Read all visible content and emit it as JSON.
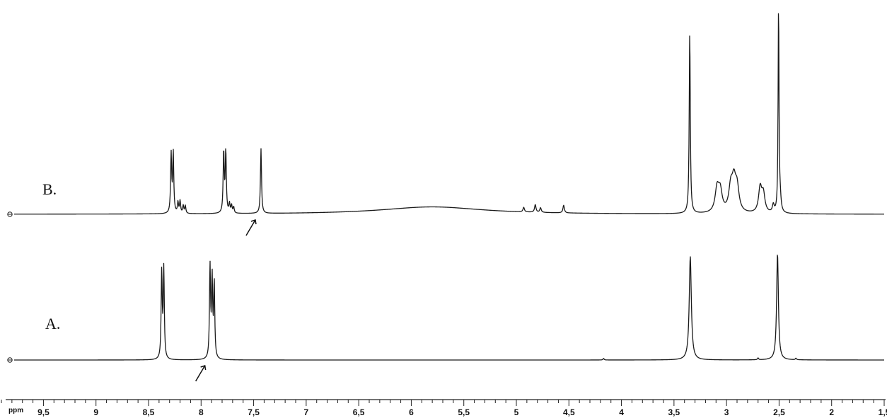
{
  "chart_data": {
    "type": "line",
    "xlabel": "ppm",
    "x_reversed": true,
    "xlim": [
      9.9,
      1.5
    ],
    "x_ticks": [
      "9,5",
      "9",
      "8,5",
      "8",
      "7,5",
      "7",
      "6,5",
      "6",
      "5,5",
      "5",
      "4,5",
      "4",
      "3,5",
      "3",
      "2,5",
      "2",
      "1,5"
    ],
    "x_tick_values": [
      9.5,
      9,
      8.5,
      8,
      7.5,
      7,
      6.5,
      6,
      5.5,
      5,
      4.5,
      4,
      3.5,
      3,
      2.5,
      2,
      1.5
    ],
    "grid": false,
    "series": [
      {
        "name": "B.",
        "peaks": [
          {
            "ppm": 8.285,
            "height": 0.38,
            "width": 0.006
          },
          {
            "ppm": 8.265,
            "height": 0.39,
            "width": 0.006
          },
          {
            "ppm": 8.22,
            "height": 0.07,
            "width": 0.006
          },
          {
            "ppm": 8.2,
            "height": 0.08,
            "width": 0.006
          },
          {
            "ppm": 8.17,
            "height": 0.05,
            "width": 0.006
          },
          {
            "ppm": 8.15,
            "height": 0.05,
            "width": 0.006
          },
          {
            "ppm": 7.785,
            "height": 0.4,
            "width": 0.006
          },
          {
            "ppm": 7.765,
            "height": 0.4,
            "width": 0.006
          },
          {
            "ppm": 7.73,
            "height": 0.06,
            "width": 0.006
          },
          {
            "ppm": 7.71,
            "height": 0.05,
            "width": 0.006
          },
          {
            "ppm": 7.69,
            "height": 0.04,
            "width": 0.006
          },
          {
            "ppm": 7.43,
            "height": 0.42,
            "width": 0.006
          },
          {
            "ppm": 5.8,
            "height": 0.048,
            "width": 0.6
          },
          {
            "ppm": 4.93,
            "height": 0.03,
            "width": 0.008
          },
          {
            "ppm": 4.82,
            "height": 0.05,
            "width": 0.008
          },
          {
            "ppm": 4.77,
            "height": 0.03,
            "width": 0.008
          },
          {
            "ppm": 4.55,
            "height": 0.05,
            "width": 0.008
          },
          {
            "ppm": 3.35,
            "height": 1.18,
            "width": 0.006
          },
          {
            "ppm": 3.09,
            "height": 0.15,
            "width": 0.022
          },
          {
            "ppm": 3.06,
            "height": 0.13,
            "width": 0.022
          },
          {
            "ppm": 2.96,
            "height": 0.15,
            "width": 0.022
          },
          {
            "ppm": 2.93,
            "height": 0.18,
            "width": 0.022
          },
          {
            "ppm": 2.9,
            "height": 0.15,
            "width": 0.022
          },
          {
            "ppm": 2.68,
            "height": 0.16,
            "width": 0.018
          },
          {
            "ppm": 2.65,
            "height": 0.12,
            "width": 0.018
          },
          {
            "ppm": 2.555,
            "height": 0.05,
            "width": 0.01
          },
          {
            "ppm": 2.505,
            "height": 1.35,
            "width": 0.005
          },
          {
            "ppm": 2.49,
            "height": 0.08,
            "width": 0.01
          }
        ]
      },
      {
        "name": "A.",
        "peaks": [
          {
            "ppm": 8.375,
            "height": 0.55,
            "width": 0.006
          },
          {
            "ppm": 8.355,
            "height": 0.57,
            "width": 0.006
          },
          {
            "ppm": 7.915,
            "height": 0.58,
            "width": 0.006
          },
          {
            "ppm": 7.895,
            "height": 0.5,
            "width": 0.006
          },
          {
            "ppm": 7.875,
            "height": 0.48,
            "width": 0.006
          },
          {
            "ppm": 4.17,
            "height": 0.01,
            "width": 0.006
          },
          {
            "ppm": 3.345,
            "height": 0.66,
            "width": 0.012
          },
          {
            "ppm": 2.7,
            "height": 0.012,
            "width": 0.006
          },
          {
            "ppm": 2.515,
            "height": 0.68,
            "width": 0.01
          },
          {
            "ppm": 2.34,
            "height": 0.01,
            "width": 0.006
          }
        ]
      }
    ],
    "annotations": [
      {
        "type": "arrow",
        "series": "B.",
        "ppm": 7.43
      },
      {
        "type": "arrow",
        "series": "A.",
        "ppm": 7.91
      }
    ]
  }
}
